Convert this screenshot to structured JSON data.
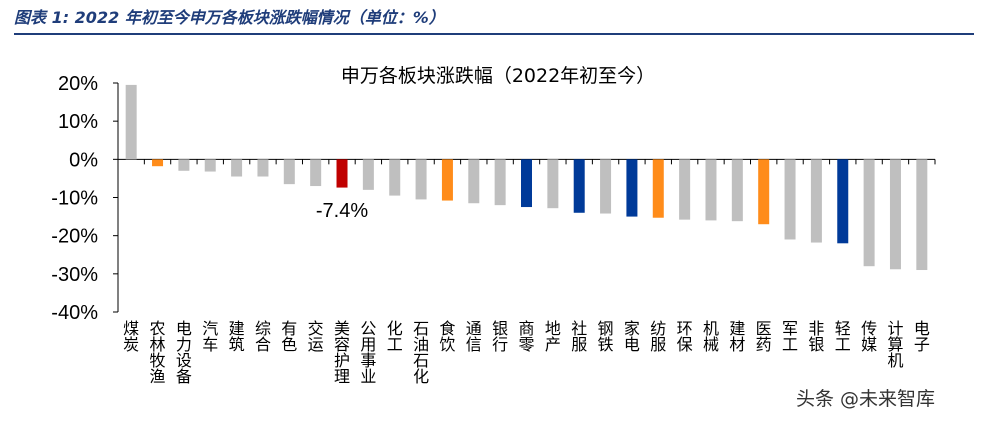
{
  "figure_caption": "图表 1: 2022 年初至今申万各板块涨跌幅情况（单位：%）",
  "watermark": "头条 @未来智库",
  "colors": {
    "gray": "#bfbfbf",
    "orange": "#ff8c1a",
    "red": "#c00000",
    "blue": "#003a99",
    "axis": "#000000",
    "caption": "#1f3d7a"
  },
  "chart_data": {
    "type": "bar",
    "title": "申万各板块涨跌幅（2022年初至今）",
    "xlabel": "",
    "ylabel": "",
    "ylim": [
      -40,
      20
    ],
    "yticks": [
      20,
      10,
      0,
      -10,
      -20,
      -30,
      -40
    ],
    "ytick_labels": [
      "20%",
      "10%",
      "0%",
      "-10%",
      "-20%",
      "-30%",
      "-40%"
    ],
    "grid": false,
    "categories": [
      "煤炭",
      "农林牧渔",
      "电力设备",
      "汽车",
      "建筑",
      "综合",
      "有色",
      "交运",
      "美容护理",
      "公用事业",
      "化工",
      "石油石化",
      "食饮",
      "通信",
      "银行",
      "商零",
      "地产",
      "社服",
      "钢铁",
      "家电",
      "纺服",
      "环保",
      "机械",
      "建材",
      "医药",
      "军工",
      "非银",
      "轻工",
      "传媒",
      "计算机",
      "电子"
    ],
    "values": [
      19.5,
      -1.8,
      -3.0,
      -3.2,
      -4.5,
      -4.5,
      -6.5,
      -7.0,
      -7.4,
      -8.0,
      -9.5,
      -10.5,
      -10.8,
      -11.5,
      -12.0,
      -12.5,
      -12.8,
      -14.0,
      -14.2,
      -15.0,
      -15.3,
      -15.8,
      -16.0,
      -16.2,
      -17.0,
      -21.0,
      -21.8,
      -22.0,
      -28.0,
      -28.8,
      -29.0
    ],
    "bar_colors": [
      "gray",
      "orange",
      "gray",
      "gray",
      "gray",
      "gray",
      "gray",
      "gray",
      "red",
      "gray",
      "gray",
      "gray",
      "orange",
      "gray",
      "gray",
      "blue",
      "gray",
      "blue",
      "gray",
      "blue",
      "orange",
      "gray",
      "gray",
      "gray",
      "orange",
      "gray",
      "gray",
      "blue",
      "gray",
      "gray",
      "gray"
    ],
    "annotations": [
      {
        "category": "美容护理",
        "text": "-7.4%"
      }
    ]
  }
}
